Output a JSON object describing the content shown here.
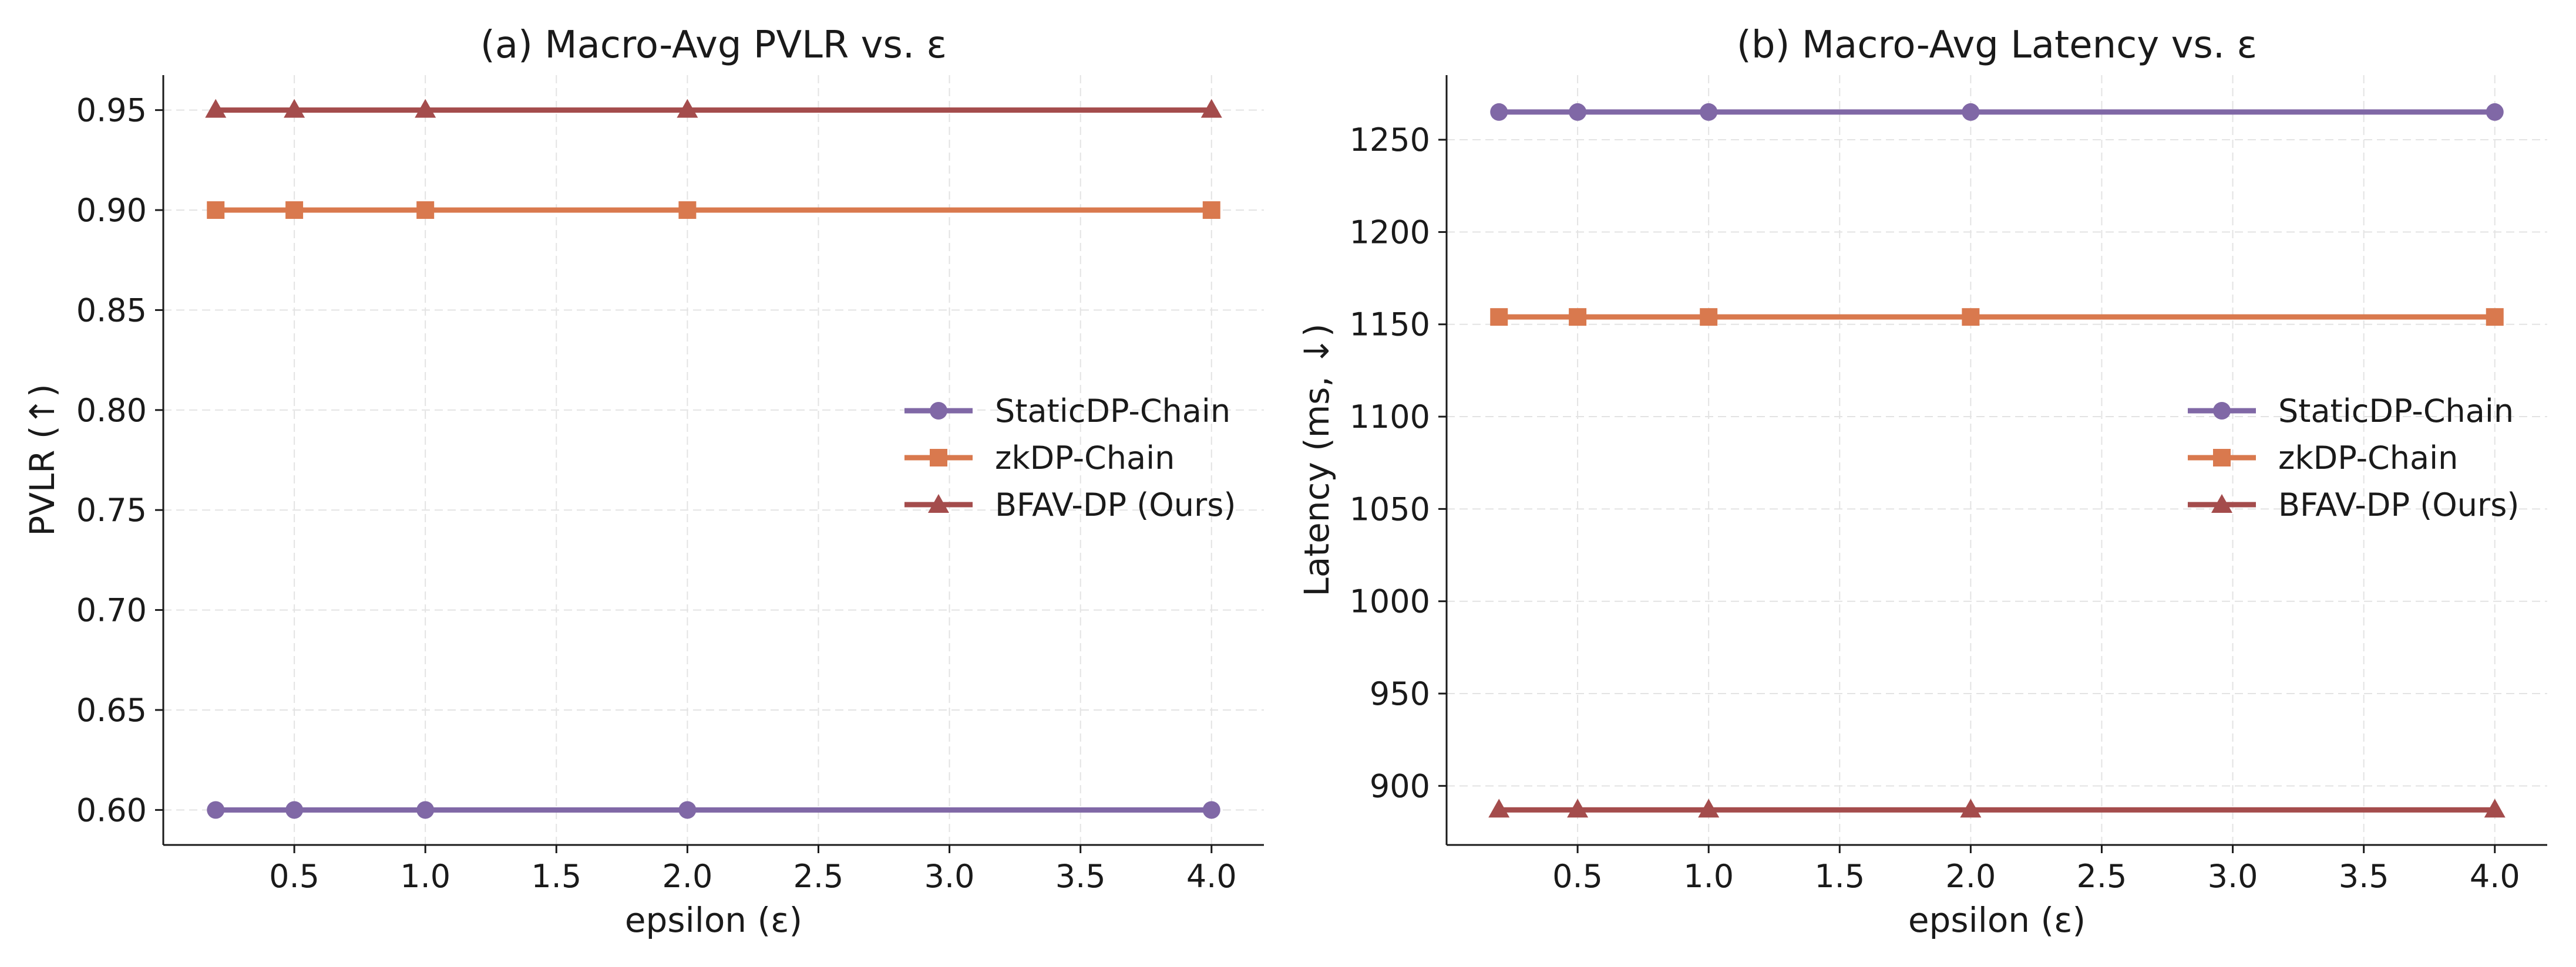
{
  "figure": {
    "panels": [
      {
        "title": "(a) Macro-Avg PVLR vs. ε",
        "xlabel": "epsilon (ε)",
        "ylabel": "PVLR (↑)"
      },
      {
        "title": "(b) Macro-Avg Latency vs. ε",
        "xlabel": "epsilon (ε)",
        "ylabel": "Latency (ms, ↓)"
      }
    ],
    "legend_entries": [
      "StaticDP-Chain",
      "zkDP-Chain",
      "BFAV-DP (Ours)"
    ]
  },
  "chart_data": [
    {
      "type": "line",
      "title": "(a) Macro-Avg PVLR vs. ε",
      "xlabel": "epsilon (ε)",
      "ylabel": "PVLR (↑)",
      "x": [
        0.2,
        0.5,
        1.0,
        2.0,
        4.0
      ],
      "xlim": [
        -0.0,
        4.2
      ],
      "xticks": [
        0.5,
        1.0,
        1.5,
        2.0,
        2.5,
        3.0,
        3.5,
        4.0
      ],
      "xtick_labels": [
        "0.5",
        "1.0",
        "1.5",
        "2.0",
        "2.5",
        "3.0",
        "3.5",
        "4.0"
      ],
      "ylim": [
        0.5825,
        0.9675
      ],
      "yticks": [
        0.6,
        0.65,
        0.7,
        0.75,
        0.8,
        0.85,
        0.9,
        0.95
      ],
      "ytick_labels": [
        "0.60",
        "0.65",
        "0.70",
        "0.75",
        "0.80",
        "0.85",
        "0.90",
        "0.95"
      ],
      "grid": true,
      "legend_position": "center-right",
      "series": [
        {
          "name": "StaticDP-Chain",
          "values": [
            0.6,
            0.6,
            0.6,
            0.6,
            0.6
          ],
          "color": "#8068a6",
          "marker": "circle"
        },
        {
          "name": "zkDP-Chain",
          "values": [
            0.9,
            0.9,
            0.9,
            0.9,
            0.9
          ],
          "color": "#d9794e",
          "marker": "square"
        },
        {
          "name": "BFAV-DP (Ours)",
          "values": [
            0.95,
            0.95,
            0.95,
            0.95,
            0.95
          ],
          "color": "#a44c4c",
          "marker": "triangle"
        }
      ]
    },
    {
      "type": "line",
      "title": "(b) Macro-Avg Latency vs. ε",
      "xlabel": "epsilon (ε)",
      "ylabel": "Latency (ms, ↓)",
      "x": [
        0.2,
        0.5,
        1.0,
        2.0,
        4.0
      ],
      "xlim": [
        -0.0,
        4.2
      ],
      "xticks": [
        0.5,
        1.0,
        1.5,
        2.0,
        2.5,
        3.0,
        3.5,
        4.0
      ],
      "xtick_labels": [
        "0.5",
        "1.0",
        "1.5",
        "2.0",
        "2.5",
        "3.0",
        "3.5",
        "4.0"
      ],
      "ylim": [
        868.0,
        1285.0
      ],
      "yticks": [
        900,
        950,
        1000,
        1050,
        1100,
        1150,
        1200,
        1250
      ],
      "ytick_labels": [
        "900",
        "950",
        "1000",
        "1050",
        "1100",
        "1150",
        "1200",
        "1250"
      ],
      "grid": true,
      "legend_position": "center-right",
      "series": [
        {
          "name": "StaticDP-Chain",
          "values": [
            1265,
            1265,
            1265,
            1265,
            1265
          ],
          "color": "#8068a6",
          "marker": "circle"
        },
        {
          "name": "zkDP-Chain",
          "values": [
            1154,
            1154,
            1154,
            1154,
            1154
          ],
          "color": "#d9794e",
          "marker": "square"
        },
        {
          "name": "BFAV-DP (Ours)",
          "values": [
            887,
            887,
            887,
            887,
            887
          ],
          "color": "#a44c4c",
          "marker": "triangle"
        }
      ]
    }
  ]
}
